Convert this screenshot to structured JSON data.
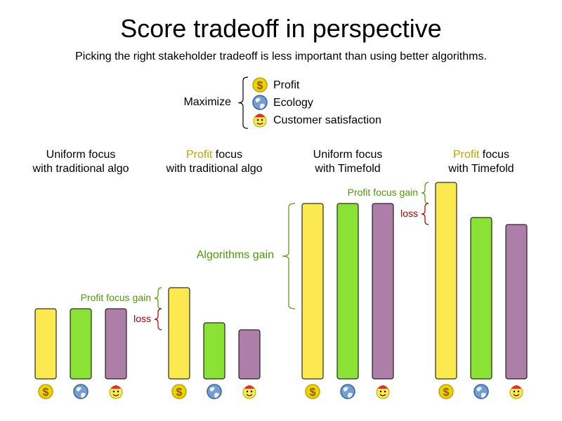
{
  "title": "Score tradeoff in perspective",
  "subtitle": "Picking the right stakeholder tradeoff is less important than using better algorithms.",
  "legend": {
    "label": "Maximize",
    "items": [
      {
        "icon": "coin-icon",
        "label": "Profit"
      },
      {
        "icon": "globe-icon",
        "label": "Ecology"
      },
      {
        "icon": "smiley-icon",
        "label": "Customer satisfaction"
      }
    ]
  },
  "colors": {
    "profit": "#fce94f",
    "ecology": "#8ae234",
    "customer": "#ad7fa8",
    "gain": "#4e9a06",
    "loss": "#a40000",
    "highlight": "#c4a000"
  },
  "groups": [
    {
      "line1_highlight": "",
      "line1": "Uniform focus",
      "line2": "with traditional algo",
      "values": [
        100,
        100,
        100
      ]
    },
    {
      "line1_highlight": "Profit",
      "line1": " focus",
      "line2": "with traditional algo",
      "values": [
        130,
        80,
        70
      ]
    },
    {
      "line1_highlight": "",
      "line1": "Uniform focus",
      "line2": "with Timefold",
      "values": [
        250,
        250,
        250
      ]
    },
    {
      "line1_highlight": "Profit",
      "line1": " focus",
      "line2": "with Timefold",
      "values": [
        280,
        230,
        220
      ]
    }
  ],
  "annotations": {
    "profit_focus_gain": "Profit focus gain",
    "loss": "loss",
    "algorithms_gain": "Algorithms gain"
  }
}
